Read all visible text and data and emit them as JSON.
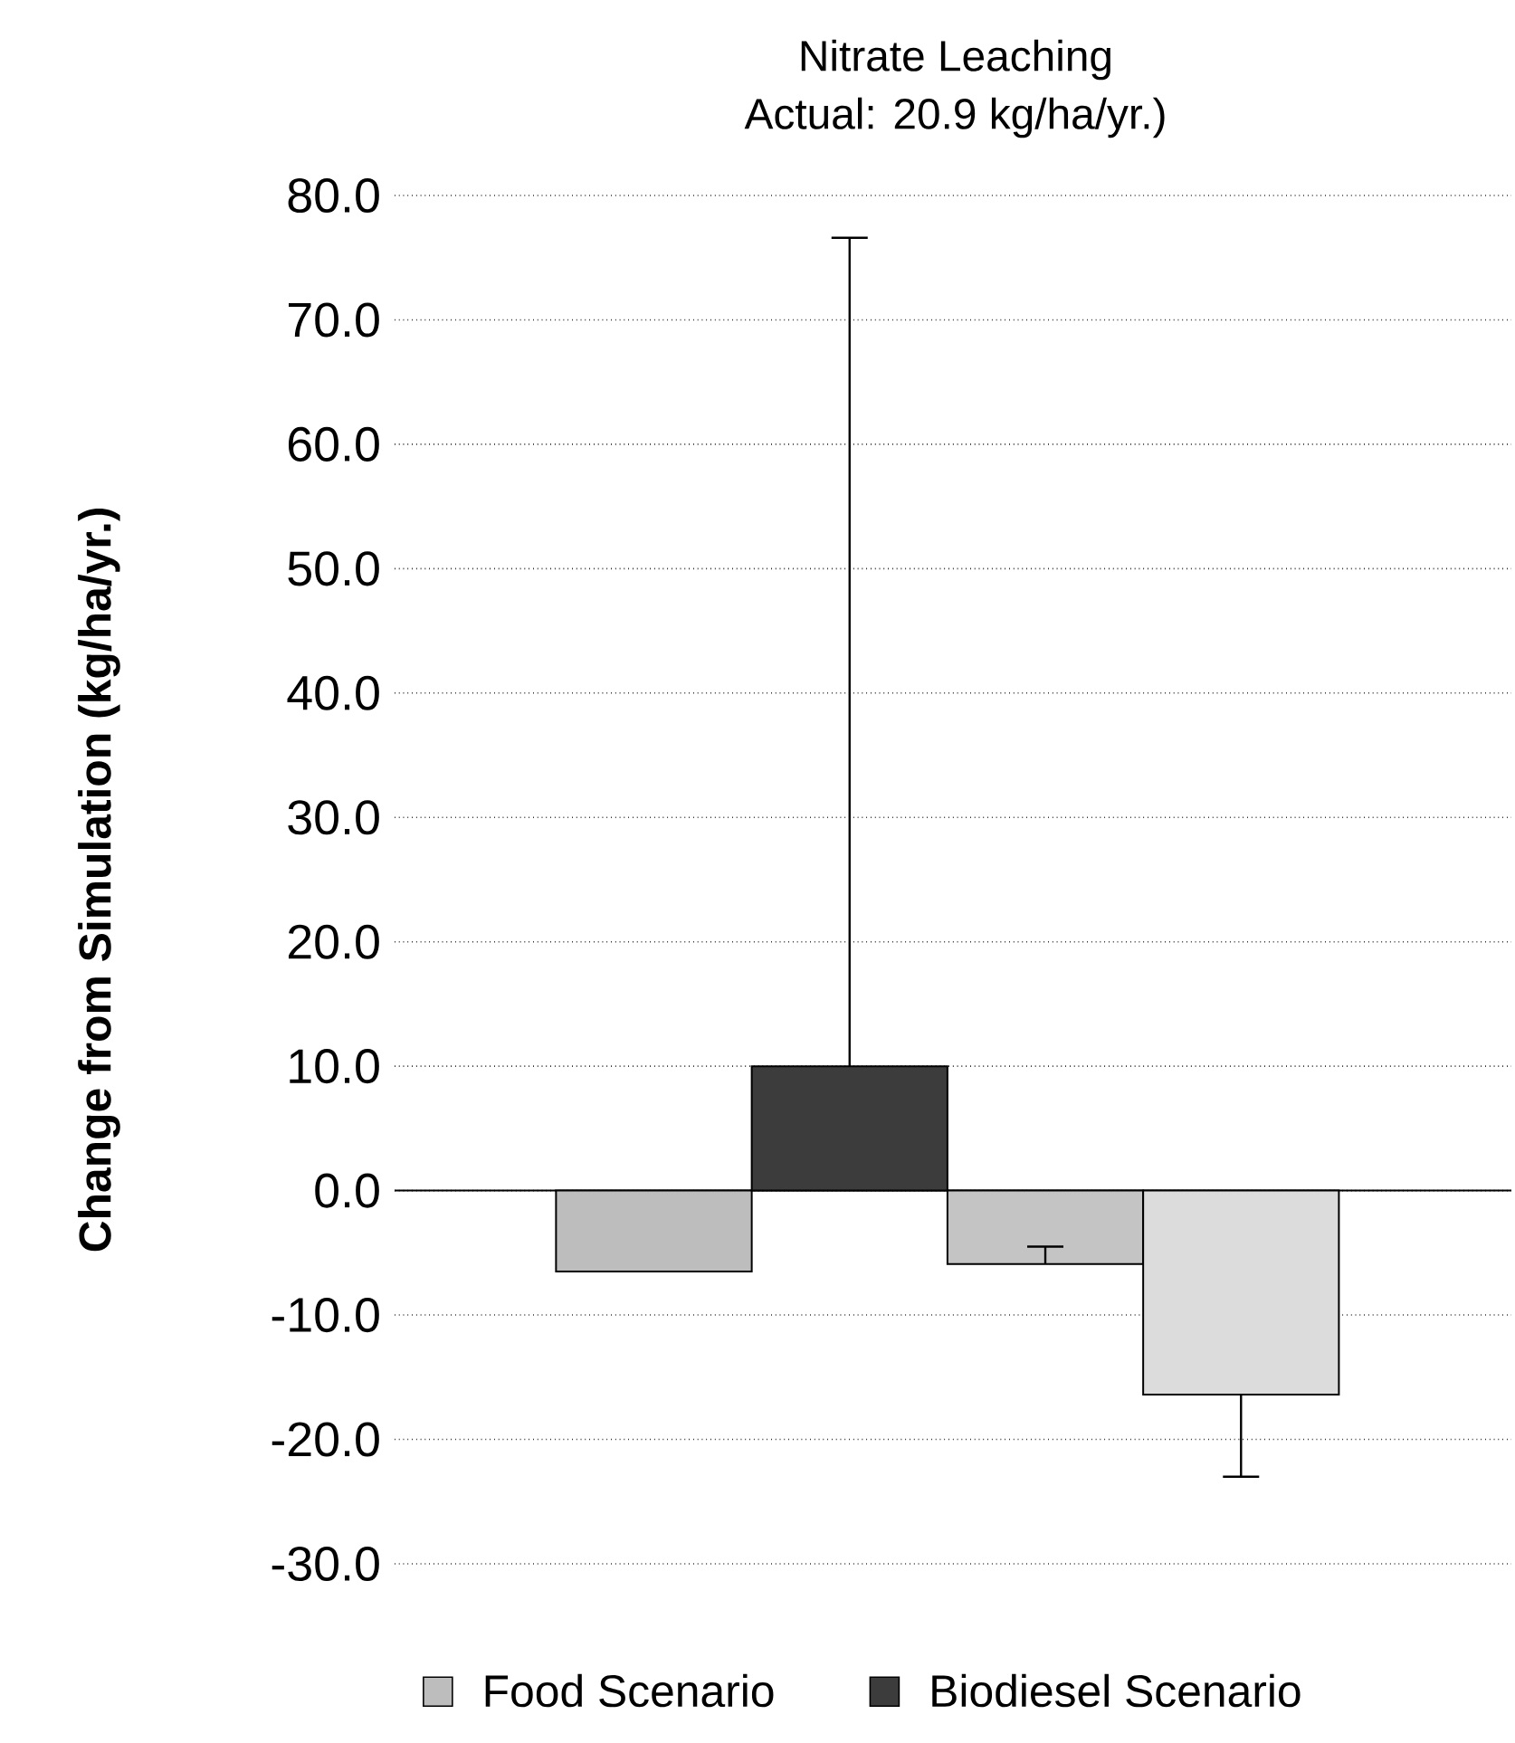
{
  "chart_data": {
    "type": "bar",
    "title": "Nitrate Leaching",
    "subtitle": "Actual: 20.9 kg/ha/yr.)",
    "ylabel": "Change from Simulation (kg/ha/yr.)",
    "categories": [
      null
    ],
    "series": [
      {
        "name": "Food Scenario",
        "color": "#bdbdbd",
        "values": [
          -6.5
        ],
        "errors": [
          null
        ]
      },
      {
        "name": "Biodiesel Scenario",
        "color": "#3c3c3c",
        "values": [
          10.0
        ],
        "errors": [
          [
            10.0,
            76.6
          ]
        ]
      },
      {
        "color": "#c4c4c4",
        "values": [
          -5.9
        ],
        "errors": [
          [
            -5.9,
            -4.5
          ]
        ]
      },
      {
        "color": "#dcdcdc",
        "values": [
          -16.4
        ],
        "errors": [
          [
            -23.0,
            -16.4
          ]
        ]
      }
    ],
    "ylim": [
      -30,
      80
    ],
    "yticks": [
      {
        "value": -30,
        "label": "-30.0"
      },
      {
        "value": -20,
        "label": "-20.0"
      },
      {
        "value": -10,
        "label": "-10.0"
      },
      {
        "value": 0,
        "label": "0.0"
      },
      {
        "value": 10,
        "label": "10.0"
      },
      {
        "value": 20,
        "label": "20.0"
      },
      {
        "value": 30,
        "label": "30.0"
      },
      {
        "value": 40,
        "label": "40.0"
      },
      {
        "value": 50,
        "label": "50.0"
      },
      {
        "value": 60,
        "label": "60.0"
      },
      {
        "value": 70,
        "label": "70.0"
      },
      {
        "value": 80,
        "label": "80.0"
      }
    ],
    "grid": "y",
    "legend": "bottom"
  }
}
